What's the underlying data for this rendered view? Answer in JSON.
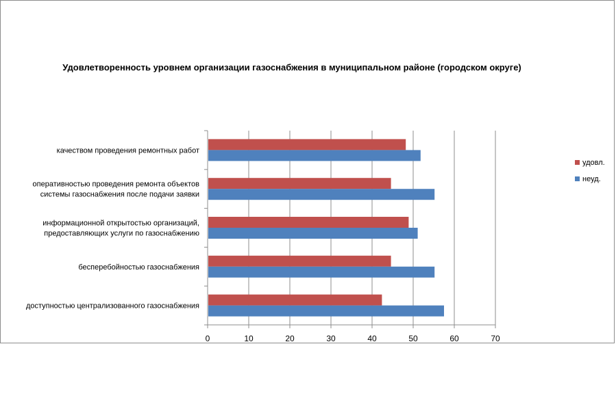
{
  "chart_data": {
    "type": "bar",
    "orientation": "horizontal",
    "title": "Удовлетворенность уровнем организации газоснабжения в муниципальном районе (городском округе)",
    "categories": [
      [
        "качеством проведения ремонтных работ"
      ],
      [
        "оперативностью проведения ремонта объектов",
        "системы газоснабжения после подачи заявки"
      ],
      [
        "информационной открытостью организаций,",
        "предоставляющих услуги по газоснабжению"
      ],
      [
        "бесперебойностью  газоснабжения"
      ],
      [
        "доступностью централизованного газоснабжения"
      ]
    ],
    "series": [
      {
        "name": "удовл.",
        "color": "#c0504d",
        "values": [
          48.2,
          44.6,
          48.9,
          44.6,
          42.4
        ]
      },
      {
        "name": "неуд.",
        "color": "#4f81bd",
        "values": [
          51.8,
          55.2,
          51.1,
          55.2,
          57.5
        ]
      }
    ],
    "xlim": [
      0,
      70
    ],
    "xticks": [
      0,
      10,
      20,
      30,
      40,
      50,
      60,
      70
    ],
    "grid": true,
    "legend": "right",
    "gridline_color": "#8c8c8c"
  }
}
